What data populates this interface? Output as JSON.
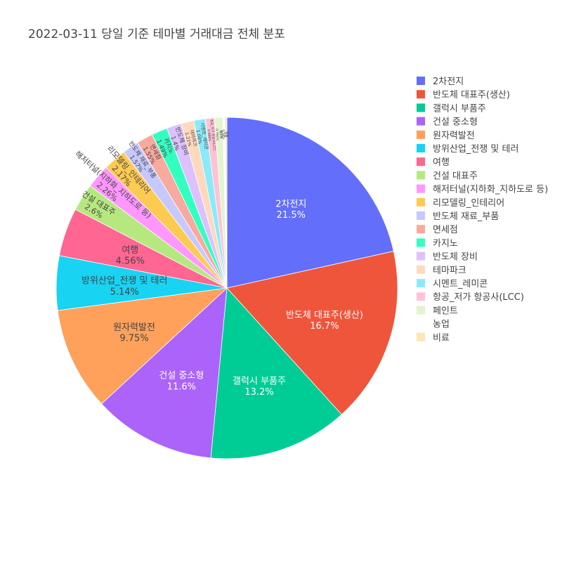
{
  "chart_data": {
    "type": "pie",
    "title": "2022-03-11 당일 기준 테마별 거래대금 전체 분포",
    "legend_position": "right",
    "slices": [
      {
        "label": "2차전지",
        "value": 21.5,
        "color": "#636efa"
      },
      {
        "label": "반도체 대표주(생산)",
        "value": 16.7,
        "color": "#EF553B"
      },
      {
        "label": "갤럭시 부품주",
        "value": 13.2,
        "color": "#00cc96"
      },
      {
        "label": "건설 중소형",
        "value": 11.6,
        "color": "#ab63fa"
      },
      {
        "label": "원자력발전",
        "value": 9.75,
        "color": "#FFA15A"
      },
      {
        "label": "방위산업_전쟁 및 테러",
        "value": 5.14,
        "color": "#19d3f3"
      },
      {
        "label": "여행",
        "value": 4.56,
        "color": "#FF6692"
      },
      {
        "label": "건설 대표주",
        "value": 2.6,
        "color": "#B6E880"
      },
      {
        "label": "해저터널(지하화_지하도로 등)",
        "value": 2.26,
        "color": "#FF97FF"
      },
      {
        "label": "리모델링_인테리어",
        "value": 2.17,
        "color": "#FECB52"
      },
      {
        "label": "반도체 재료_부품",
        "value": 1.57,
        "color": "#c6c9fd"
      },
      {
        "label": "면세점",
        "value": 1.55,
        "color": "#f7aa9d"
      },
      {
        "label": "카지노",
        "value": 1.49,
        "color": "#33ffc0"
      },
      {
        "label": "반도체 장비",
        "value": 1.4,
        "color": "#ddc1fd"
      },
      {
        "label": "테마파크",
        "value": 1.21,
        "color": "#ffd9bd"
      },
      {
        "label": "시멘트_레미콘",
        "value": 1.08,
        "color": "#8ceaf8"
      },
      {
        "label": "항공_저가 항공사(LCC)",
        "value": 0.868,
        "color": "#ffc2d4"
      },
      {
        "label": "페인트",
        "value": 0.762,
        "color": "#e2f4d0"
      },
      {
        "label": "농업",
        "value": 0.2,
        "color": "#ffffff"
      },
      {
        "label": "비료",
        "value": 0.19,
        "color": "#fee5b2"
      }
    ]
  }
}
